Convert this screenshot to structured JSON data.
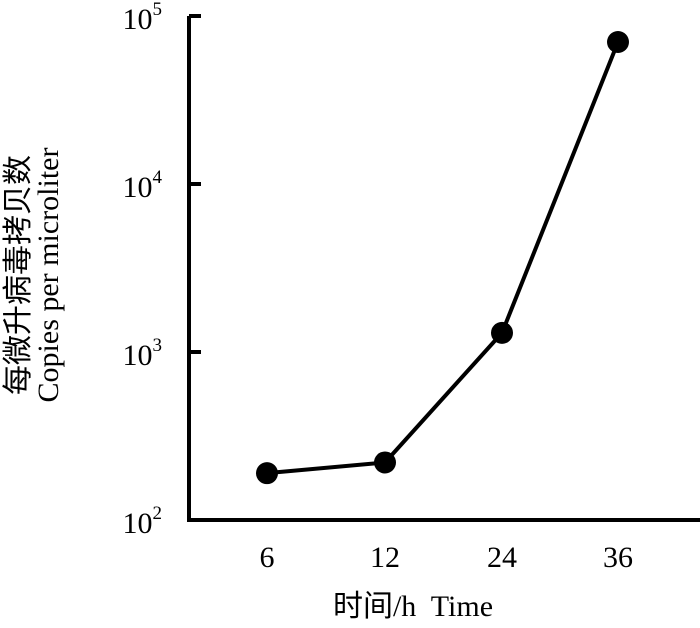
{
  "chart_data": {
    "type": "line",
    "title": "",
    "xlabel": "时间/h  Time",
    "ylabel_cn": "每微升病毒拷贝数",
    "ylabel_en": "Copies per microliter",
    "categories": [
      "6",
      "12",
      "24",
      "36"
    ],
    "values": [
      190,
      220,
      1300,
      70000
    ],
    "y_scale": "log",
    "ylim": [
      100,
      100000
    ],
    "y_ticks": [
      {
        "base": "10",
        "exp": "2"
      },
      {
        "base": "10",
        "exp": "3"
      },
      {
        "base": "10",
        "exp": "4"
      },
      {
        "base": "10",
        "exp": "5"
      }
    ],
    "grid": false,
    "legend": "none",
    "colors": {
      "line": "#000000",
      "marker": "#000000",
      "axis": "#000000"
    }
  }
}
